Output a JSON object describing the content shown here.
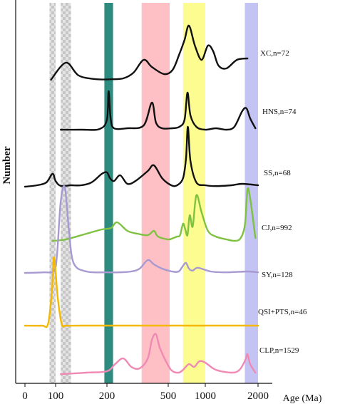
{
  "chart_data": {
    "type": "line",
    "title": "",
    "xlabel": "Age (Ma)",
    "ylabel": "Number",
    "x_ticks": [
      "0",
      "100",
      "200",
      "500",
      "1000",
      "2000"
    ],
    "x_tick_values": [
      0,
      100,
      200,
      500,
      1000,
      2000
    ],
    "bands": [
      {
        "range": [
          80,
          100
        ],
        "color": "#d3d3d3",
        "pattern": "checker"
      },
      {
        "range": [
          110,
          130
        ],
        "color": "#d3d3d3",
        "pattern": "checker"
      },
      {
        "range": [
          195,
          230
        ],
        "color": "#2e8b80",
        "pattern": "solid"
      },
      {
        "range": [
          370,
          520
        ],
        "color": "#ffc0c5",
        "pattern": "solid"
      },
      {
        "range": [
          700,
          1000
        ],
        "color": "#fdfc91",
        "pattern": "solid"
      },
      {
        "range": [
          1750,
          2000
        ],
        "color": "#c3c3f4",
        "pattern": "solid"
      }
    ],
    "series": [
      {
        "name": "XC,n=72",
        "color": "#111111",
        "baseline": 0.0,
        "x": [
          85,
          120,
          145,
          180,
          220,
          280,
          330,
          380,
          420,
          480,
          560,
          650,
          720,
          780,
          860,
          950,
          1050,
          1150,
          1250,
          1400,
          1600,
          1800
        ],
        "y": [
          0.0,
          0.6,
          0.15,
          0.02,
          0.02,
          0.05,
          0.25,
          0.7,
          0.45,
          0.2,
          0.35,
          0.9,
          1.4,
          1.9,
          1.2,
          0.7,
          1.2,
          1.0,
          0.5,
          0.4,
          0.7,
          0.75
        ]
      },
      {
        "name": "HNS,n=74",
        "color": "#111111",
        "baseline": 0.0,
        "x": [
          110,
          150,
          185,
          200,
          208,
          218,
          235,
          300,
          380,
          420,
          440,
          470,
          550,
          650,
          720,
          760,
          800,
          880,
          1000,
          1200,
          1400,
          1550,
          1700,
          1780,
          1850,
          1950
        ],
        "y": [
          0.0,
          0.0,
          0.02,
          0.35,
          1.35,
          0.4,
          0.05,
          0.05,
          0.15,
          0.95,
          0.25,
          0.05,
          0.05,
          0.1,
          0.35,
          1.3,
          0.5,
          0.1,
          0.0,
          0.05,
          0.0,
          0.1,
          0.65,
          0.75,
          0.4,
          0.05
        ]
      },
      {
        "name": "SS,n=68",
        "color": "#111111",
        "baseline": 0.0,
        "x": [
          0,
          40,
          70,
          90,
          100,
          110,
          130,
          150,
          170,
          190,
          200,
          215,
          235,
          265,
          300,
          340,
          400,
          430,
          470,
          540,
          620,
          700,
          740,
          765,
          800,
          880,
          1000,
          1200,
          1500,
          1700,
          2000
        ],
        "y": [
          0.0,
          0.05,
          0.15,
          0.45,
          0.2,
          0.03,
          0.05,
          0.05,
          0.15,
          0.45,
          0.5,
          0.3,
          0.2,
          0.4,
          0.1,
          0.2,
          0.55,
          0.75,
          0.3,
          0.05,
          0.05,
          0.3,
          1.0,
          2.1,
          0.9,
          0.15,
          0.05,
          0.02,
          0.05,
          0.1,
          0.05
        ]
      },
      {
        "name": "CJ,n=992",
        "color": "#7fc241",
        "baseline": 0.0,
        "x": [
          90,
          120,
          160,
          190,
          220,
          250,
          300,
          350,
          400,
          430,
          450,
          500,
          570,
          620,
          660,
          700,
          730,
          760,
          790,
          830,
          880,
          950,
          1050,
          1200,
          1400,
          1550,
          1650,
          1720,
          1760,
          1800,
          1850,
          1950
        ],
        "y": [
          0.0,
          0.05,
          0.25,
          0.4,
          0.45,
          0.65,
          0.35,
          0.25,
          0.2,
          0.35,
          0.15,
          0.05,
          0.1,
          0.15,
          0.2,
          0.6,
          0.4,
          0.2,
          0.9,
          0.5,
          1.6,
          1.0,
          0.35,
          0.15,
          0.05,
          0.0,
          0.05,
          0.3,
          0.7,
          1.8,
          1.5,
          0.1
        ]
      },
      {
        "name": "SY,n=128",
        "color": "#a89ad1",
        "baseline": 0.0,
        "x": [
          0,
          60,
          95,
          103,
          110,
          118,
          126,
          135,
          160,
          200,
          260,
          320,
          360,
          400,
          430,
          470,
          550,
          640,
          700,
          740,
          780,
          830,
          900,
          1100,
          1400,
          1800,
          2000
        ],
        "y": [
          0.0,
          0.02,
          0.08,
          0.7,
          2.5,
          3.0,
          1.5,
          0.35,
          0.05,
          0.02,
          0.02,
          0.05,
          0.15,
          0.45,
          0.3,
          0.15,
          0.05,
          0.05,
          0.25,
          0.35,
          0.15,
          0.08,
          0.18,
          0.05,
          0.02,
          0.05,
          0.02
        ]
      },
      {
        "name": "QSI+PTS,n=46",
        "color": "#f5b800",
        "baseline": 0.0,
        "x": [
          0,
          55,
          75,
          88,
          95,
          104,
          112,
          120,
          150,
          300,
          1000,
          2000
        ],
        "y": [
          0.0,
          0.0,
          0.05,
          1.2,
          2.4,
          1.0,
          0.05,
          0.0,
          0.0,
          0.0,
          0.0,
          0.0
        ]
      },
      {
        "name": "CLP,n=1529",
        "color": "#f089b4",
        "baseline": 0.0,
        "x": [
          110,
          160,
          200,
          240,
          280,
          320,
          360,
          400,
          420,
          440,
          460,
          500,
          560,
          640,
          700,
          780,
          850,
          920,
          1000,
          1200,
          1500,
          1650,
          1760,
          1800,
          1850,
          1950
        ],
        "y": [
          0.0,
          0.05,
          0.1,
          0.35,
          0.55,
          0.25,
          0.2,
          0.55,
          1.2,
          1.4,
          0.9,
          0.3,
          0.1,
          0.05,
          0.15,
          0.35,
          0.25,
          0.45,
          0.4,
          0.15,
          0.05,
          0.15,
          0.5,
          0.7,
          0.35,
          0.05
        ]
      }
    ]
  }
}
